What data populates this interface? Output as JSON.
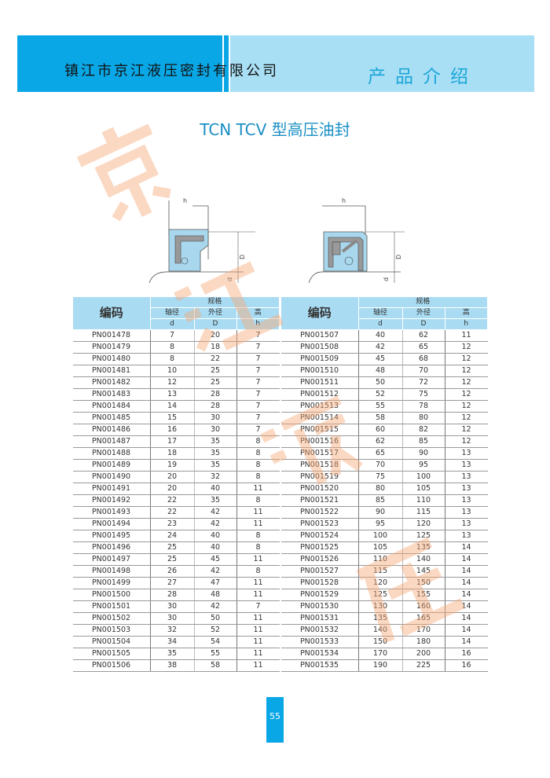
{
  "header": {
    "company": "镇江市京江液压密封有限公司",
    "section": "产品介绍",
    "accent": "#0aa7e6",
    "accent_light": "#a9dff5"
  },
  "title": "TCN  TCV 型高压油封",
  "watermark": [
    "京",
    "江",
    "液",
    "压"
  ],
  "diagrams": {
    "left": {
      "h": "h",
      "D": "D",
      "d": "d"
    },
    "right": {
      "h": "h",
      "D": "D",
      "d": "d"
    }
  },
  "table_headers": {
    "code": "编码",
    "spec": "规格",
    "shaft": "轴径",
    "outer": "外径",
    "height": "高",
    "d": "d",
    "D": "D",
    "h": "h"
  },
  "left_rows": [
    [
      "PN001478",
      "7",
      "20",
      "7"
    ],
    [
      "PN001479",
      "8",
      "18",
      "7"
    ],
    [
      "PN001480",
      "8",
      "22",
      "7"
    ],
    [
      "PN001481",
      "10",
      "25",
      "7"
    ],
    [
      "PN001482",
      "12",
      "25",
      "7"
    ],
    [
      "PN001483",
      "13",
      "28",
      "7"
    ],
    [
      "PN001484",
      "14",
      "28",
      "7"
    ],
    [
      "PN001485",
      "15",
      "30",
      "7"
    ],
    [
      "PN001486",
      "16",
      "30",
      "7"
    ],
    [
      "PN001487",
      "17",
      "35",
      "8"
    ],
    [
      "PN001488",
      "18",
      "35",
      "8"
    ],
    [
      "PN001489",
      "19",
      "35",
      "8"
    ],
    [
      "PN001490",
      "20",
      "32",
      "8"
    ],
    [
      "PN001491",
      "20",
      "40",
      "11"
    ],
    [
      "PN001492",
      "22",
      "35",
      "8"
    ],
    [
      "PN001493",
      "22",
      "42",
      "11"
    ],
    [
      "PN001494",
      "23",
      "42",
      "11"
    ],
    [
      "PN001495",
      "24",
      "40",
      "8"
    ],
    [
      "PN001496",
      "25",
      "40",
      "8"
    ],
    [
      "PN001497",
      "25",
      "45",
      "11"
    ],
    [
      "PN001498",
      "26",
      "42",
      "8"
    ],
    [
      "PN001499",
      "27",
      "47",
      "11"
    ],
    [
      "PN001500",
      "28",
      "48",
      "11"
    ],
    [
      "PN001501",
      "30",
      "42",
      "7"
    ],
    [
      "PN001502",
      "30",
      "50",
      "11"
    ],
    [
      "PN001503",
      "32",
      "52",
      "11"
    ],
    [
      "PN001504",
      "34",
      "54",
      "11"
    ],
    [
      "PN001505",
      "35",
      "55",
      "11"
    ],
    [
      "PN001506",
      "38",
      "58",
      "11"
    ]
  ],
  "right_rows": [
    [
      "PN001507",
      "40",
      "62",
      "11"
    ],
    [
      "PN001508",
      "42",
      "65",
      "12"
    ],
    [
      "PN001509",
      "45",
      "68",
      "12"
    ],
    [
      "PN001510",
      "48",
      "70",
      "12"
    ],
    [
      "PN001511",
      "50",
      "72",
      "12"
    ],
    [
      "PN001512",
      "52",
      "75",
      "12"
    ],
    [
      "PN001513",
      "55",
      "78",
      "12"
    ],
    [
      "PN001514",
      "58",
      "80",
      "12"
    ],
    [
      "PN001515",
      "60",
      "82",
      "12"
    ],
    [
      "PN001516",
      "62",
      "85",
      "12"
    ],
    [
      "PN001517",
      "65",
      "90",
      "13"
    ],
    [
      "PN001518",
      "70",
      "95",
      "13"
    ],
    [
      "PN001519",
      "75",
      "100",
      "13"
    ],
    [
      "PN001520",
      "80",
      "105",
      "13"
    ],
    [
      "PN001521",
      "85",
      "110",
      "13"
    ],
    [
      "PN001522",
      "90",
      "115",
      "13"
    ],
    [
      "PN001523",
      "95",
      "120",
      "13"
    ],
    [
      "PN001524",
      "100",
      "125",
      "13"
    ],
    [
      "PN001525",
      "105",
      "135",
      "14"
    ],
    [
      "PN001526",
      "110",
      "140",
      "14"
    ],
    [
      "PN001527",
      "115",
      "145",
      "14"
    ],
    [
      "PN001528",
      "120",
      "150",
      "14"
    ],
    [
      "PN001529",
      "125",
      "155",
      "14"
    ],
    [
      "PN001530",
      "130",
      "160",
      "14"
    ],
    [
      "PN001531",
      "135",
      "165",
      "14"
    ],
    [
      "PN001532",
      "140",
      "170",
      "14"
    ],
    [
      "PN001533",
      "150",
      "180",
      "14"
    ],
    [
      "PN001534",
      "170",
      "200",
      "16"
    ],
    [
      "PN001535",
      "190",
      "225",
      "16"
    ]
  ],
  "page_number": "55"
}
